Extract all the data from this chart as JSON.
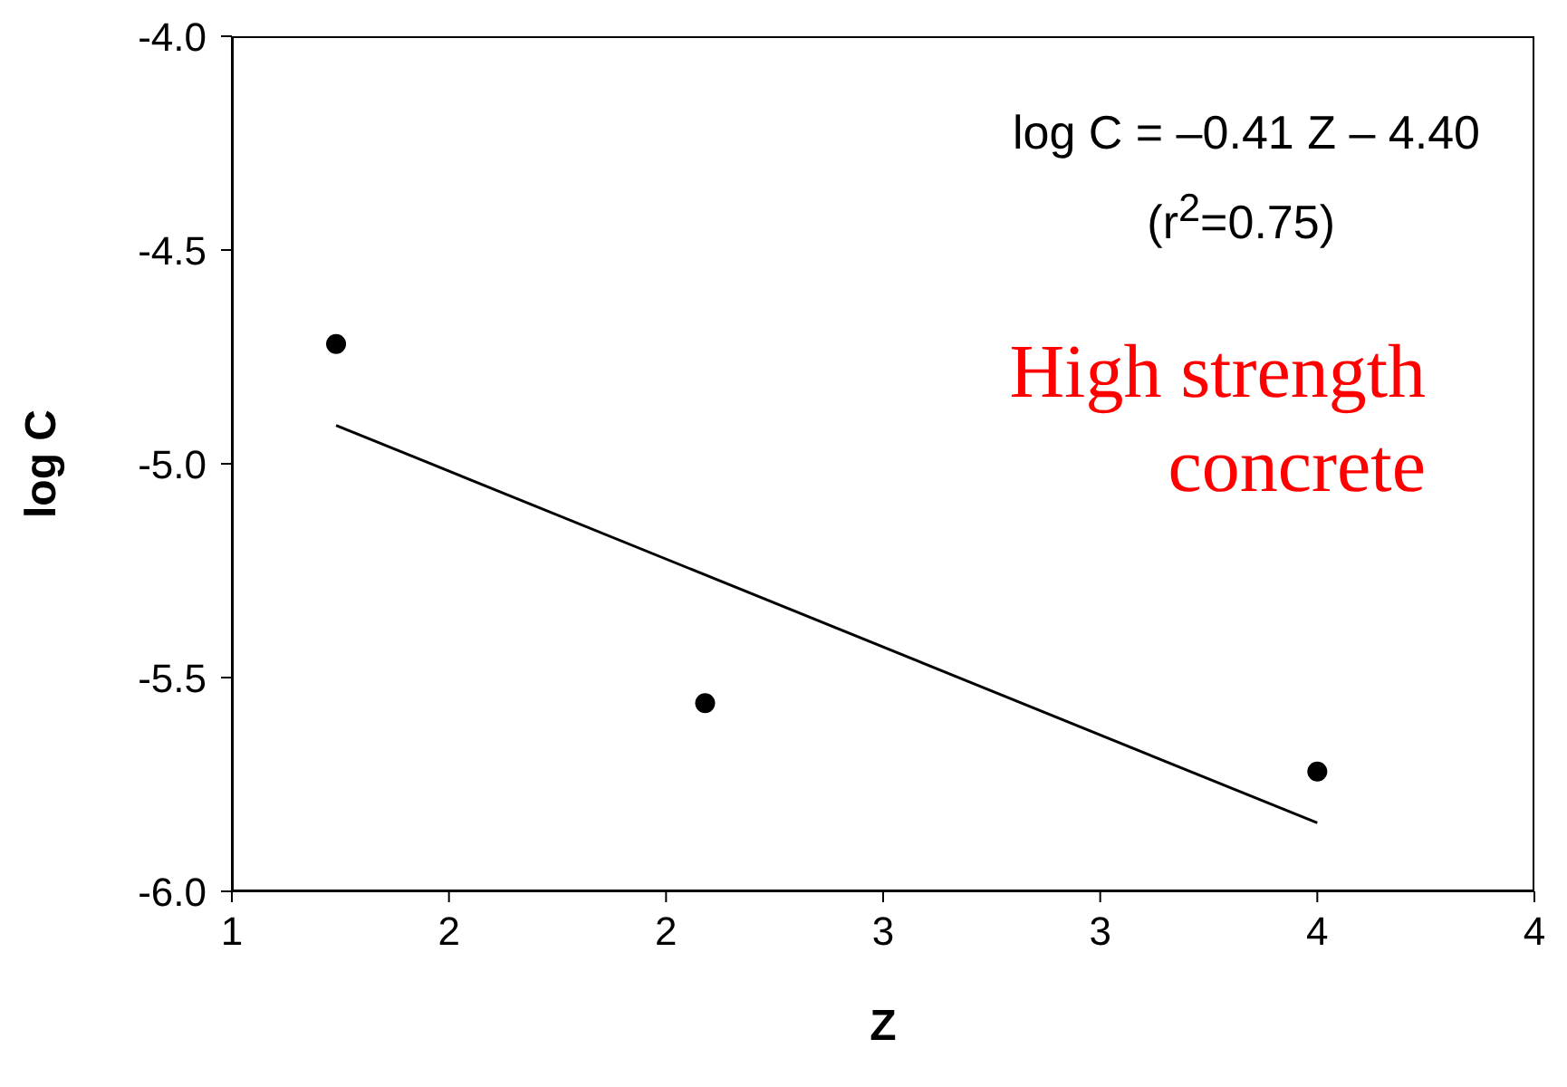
{
  "chart_data": {
    "type": "scatter",
    "xlabel": "Z",
    "ylabel": "log C",
    "xlim": [
      1,
      4
    ],
    "xticks": [
      1,
      {
        "value": 1.5,
        "label": "2"
      },
      2,
      {
        "value": 2.5,
        "label": "3"
      },
      3,
      {
        "value": 3.5,
        "label": "4"
      },
      4
    ],
    "ylim": [
      -6,
      -4
    ],
    "yticks": [
      {
        "value": -6,
        "label": "-6.0"
      },
      {
        "value": -5.5,
        "label": "-5.5"
      },
      {
        "value": -5,
        "label": "-5.0"
      },
      {
        "value": -4.5,
        "label": "-4.5"
      },
      {
        "value": -4,
        "label": "-4.0"
      }
    ],
    "series": [
      {
        "color": "#000000",
        "marker": "circle",
        "x": [
          1.24,
          2.09,
          3.5
        ],
        "values": [
          -4.72,
          -5.56,
          -5.72
        ]
      },
      {
        "type": "line",
        "color": "#000000",
        "x": [
          1.24,
          3.5
        ],
        "values": [
          -4.91,
          -5.84
        ]
      }
    ],
    "line_style": "solid",
    "grid": false,
    "annotations": [
      "log C = –0.41 Z – 4.40",
      "(r$^{2}$=0.75)",
      "High strength concrete"
    ]
  }
}
